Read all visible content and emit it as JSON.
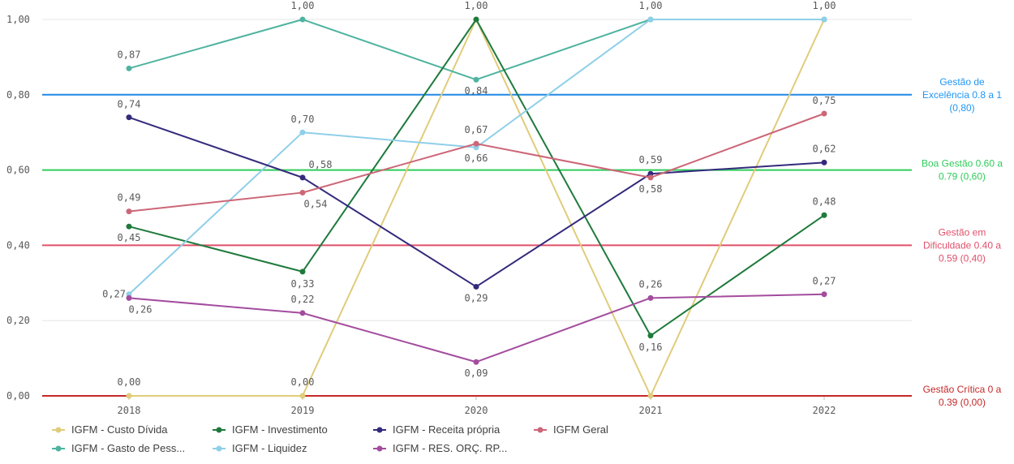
{
  "chart_data": {
    "type": "line",
    "x": [
      "2018",
      "2019",
      "2020",
      "2021",
      "2022"
    ],
    "ylim": [
      0,
      1
    ],
    "y_ticks": [
      "0,00",
      "0,20",
      "0,40",
      "0,60",
      "0,80",
      "1,00"
    ],
    "y_tick_values": [
      0,
      0.2,
      0.4,
      0.6,
      0.8,
      1.0
    ],
    "grid": true,
    "legend_position": "bottom",
    "series": [
      {
        "name": "IGFM - Custo Dívida",
        "color": "#e0cc7a",
        "values": [
          0.0,
          0.0,
          1.0,
          0.0,
          1.0
        ],
        "labels": [
          "0,00",
          "0,00",
          "1,00",
          "",
          "1,00"
        ]
      },
      {
        "name": "IGFM - Gasto de Pess...",
        "color": "#4fb3a0",
        "values": [
          0.87,
          1.0,
          0.84,
          1.0,
          1.0
        ],
        "labels": [
          "0,87",
          "1,00",
          "0,84",
          "1,00",
          ""
        ]
      },
      {
        "name": "IGFM - Investimento",
        "color": "#1f7a3c",
        "values": [
          0.45,
          0.33,
          1.0,
          0.16,
          0.48
        ],
        "labels": [
          "0,45",
          "0,33",
          "",
          "0,16",
          "0,48"
        ]
      },
      {
        "name": "IGFM - Liquidez",
        "color": "#8fcfe8",
        "values": [
          0.27,
          0.7,
          0.66,
          1.0,
          1.0
        ],
        "labels": [
          "0,27",
          "0,70",
          "0,66",
          "",
          ""
        ]
      },
      {
        "name": "IGFM - Receita própria",
        "color": "#332a7c",
        "values": [
          0.74,
          0.58,
          0.29,
          0.59,
          0.62
        ],
        "labels": [
          "0,74",
          "0,58",
          "0,29",
          "0,59",
          "0,62"
        ]
      },
      {
        "name": "IGFM - RES. ORÇ. RP...",
        "color": "#a34c9e",
        "values": [
          0.26,
          0.22,
          0.09,
          0.26,
          0.27
        ],
        "labels": [
          "0,26",
          "0,22",
          "0,09",
          "0,26",
          "0,27"
        ]
      },
      {
        "name": "IGFM Geral",
        "color": "#cc6677",
        "values": [
          0.49,
          0.54,
          0.67,
          0.58,
          0.75
        ],
        "labels": [
          "0,49",
          "0,54",
          "0,67",
          "0,58",
          "0,75"
        ]
      }
    ],
    "reference_lines": [
      {
        "value": 0.8,
        "color": "#1e88e5",
        "text_color": "#2196f3",
        "label_lines": [
          "Gestão de",
          "Excelência 0.8 a 1",
          "(0,80)"
        ]
      },
      {
        "value": 0.6,
        "color": "#2ecc5a",
        "text_color": "#2ecc5a",
        "label_lines": [
          "Boa Gestão 0.60 a",
          "0.79 (0,60)"
        ]
      },
      {
        "value": 0.4,
        "color": "#e0506a",
        "text_color": "#e0506a",
        "label_lines": [
          "Gestão em",
          "Dificuldade 0.40 a",
          "0.59 (0,40)"
        ]
      },
      {
        "value": 0.0,
        "color": "#c62828",
        "text_color": "#c62828",
        "label_lines": [
          "Gestão Crítica 0 a",
          "0.39 (0,00)"
        ]
      }
    ],
    "legend_order": [
      "IGFM - Custo Dívida",
      "IGFM - Investimento",
      "IGFM - Receita própria",
      "IGFM Geral",
      "IGFM - Gasto de Pess...",
      "IGFM - Liquidez",
      "IGFM - RES. ORÇ. RP..."
    ]
  }
}
